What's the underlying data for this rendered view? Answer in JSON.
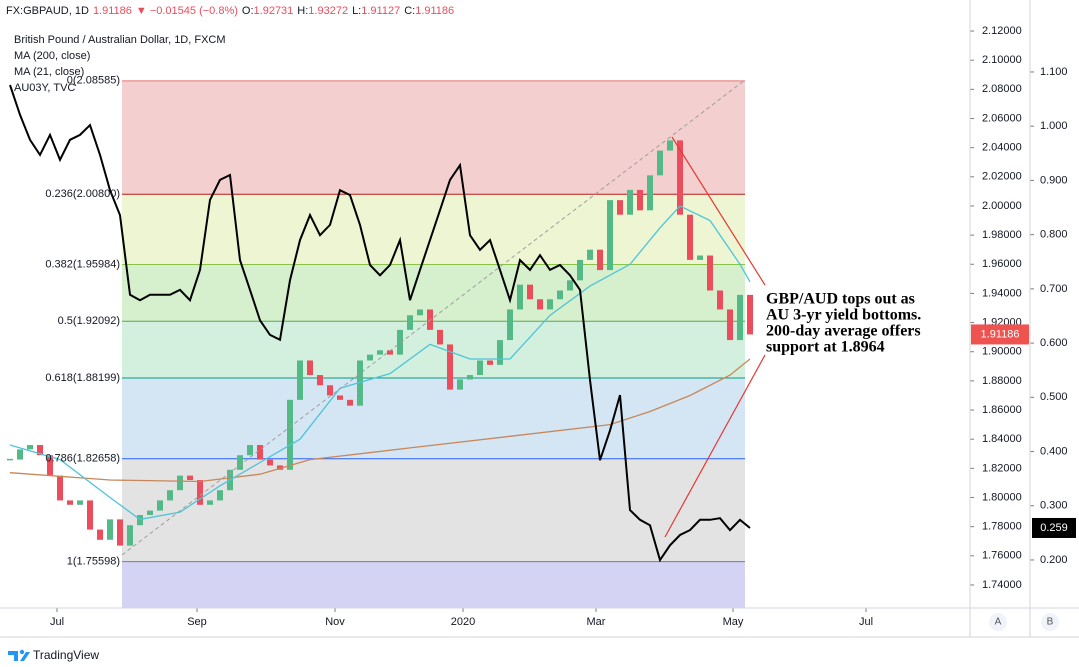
{
  "chart_data": {
    "type": "candlestick",
    "header": {
      "symbol": "FX:GBPAUD, 1D",
      "last": "1.91186",
      "change": "▼ −0.01545 (−0.8%)",
      "ohlc": [
        {
          "label": "O:",
          "value": "1.92731"
        },
        {
          "label": "H:",
          "value": "1.93272"
        },
        {
          "label": "L:",
          "value": "1.91127"
        },
        {
          "label": "C:",
          "value": "1.91186"
        }
      ]
    },
    "annotation": [
      "GBP/AUD tops out as",
      "AU 3-yr yield bottoms.",
      "200-day average offers",
      "support at 1.8964"
    ],
    "xlim": [
      -1,
      96
    ],
    "xticks": [
      {
        "value": 4.7,
        "label": "Jul"
      },
      {
        "value": 18.7,
        "label": "Sep"
      },
      {
        "value": 32.5,
        "label": "Nov"
      },
      {
        "value": 45.3,
        "label": "2020"
      },
      {
        "value": 58.6,
        "label": "Mar"
      },
      {
        "value": 72.3,
        "label": "May"
      },
      {
        "value": 85.6,
        "label": "Jul"
      }
    ],
    "ylim": [
      1.7242,
      2.1358
    ],
    "yticks": [
      {
        "value": 1.74,
        "label": "1.74000"
      },
      {
        "value": 1.76,
        "label": "1.76000"
      },
      {
        "value": 1.78,
        "label": "1.78000"
      },
      {
        "value": 1.8,
        "label": "1.80000"
      },
      {
        "value": 1.82,
        "label": "1.82000"
      },
      {
        "value": 1.84,
        "label": "1.84000"
      },
      {
        "value": 1.86,
        "label": "1.86000"
      },
      {
        "value": 1.88,
        "label": "1.88000"
      },
      {
        "value": 1.9,
        "label": "1.90000"
      },
      {
        "value": 1.92,
        "label": "1.92000"
      },
      {
        "value": 1.94,
        "label": "1.94000"
      },
      {
        "value": 1.96,
        "label": "1.96000"
      },
      {
        "value": 1.98,
        "label": "1.98000"
      },
      {
        "value": 2.0,
        "label": "2.00000"
      },
      {
        "value": 2.02,
        "label": "2.02000"
      },
      {
        "value": 2.04,
        "label": "2.04000"
      },
      {
        "value": 2.06,
        "label": "2.06000"
      },
      {
        "value": 2.08,
        "label": "2.08000"
      },
      {
        "value": 2.1,
        "label": "2.10000"
      },
      {
        "value": 2.12,
        "label": "2.12000"
      }
    ],
    "y2lim": [
      0.1114,
      1.218
    ],
    "y2ticks": [
      {
        "value": 0.2,
        "label": "0.200"
      },
      {
        "value": 0.3,
        "label": "0.300"
      },
      {
        "value": 0.4,
        "label": "0.400"
      },
      {
        "value": 0.5,
        "label": "0.500"
      },
      {
        "value": 0.6,
        "label": "0.600"
      },
      {
        "value": 0.7,
        "label": "0.700"
      },
      {
        "value": 0.8,
        "label": "0.800"
      },
      {
        "value": 0.9,
        "label": "0.900"
      },
      {
        "value": 1.0,
        "label": "1.000"
      },
      {
        "value": 1.1,
        "label": "1.100"
      }
    ],
    "fib_levels": [
      {
        "value": 2.08585,
        "label": "0(2.08585)",
        "color": "#e57373",
        "fill": "#f4cfcf"
      },
      {
        "value": 2.008,
        "label": "0.236(2.00800)",
        "color": "#b71c1c",
        "fill": "#eef5d3"
      },
      {
        "value": 1.95984,
        "label": "0.382(1.95984)",
        "color": "#8bc34a",
        "fill": "#d6efcc"
      },
      {
        "value": 1.92092,
        "label": "0.5(1.92092)",
        "color": "#4caf50",
        "fill": "#d3f0de"
      },
      {
        "value": 1.88199,
        "label": "0.618(1.88199)",
        "color": "#089981",
        "fill": "#d4e6f3"
      },
      {
        "value": 1.82658,
        "label": "0.786(1.82658)",
        "color": "#2962ff",
        "fill": "#e3e3e3"
      },
      {
        "value": 1.75598,
        "label": "1(1.75598)",
        "color": "#787b86",
        "fill": "#d5d3f3"
      }
    ],
    "series": [
      {
        "name": "British Pound / Australian Dollar, 1D, FXCM",
        "up_color": "#53b987",
        "down_color": "#eb4d5c",
        "values": [
          1.826,
          1.833,
          1.836,
          1.829,
          1.815,
          1.798,
          1.795,
          1.798,
          1.778,
          1.771,
          1.785,
          1.767,
          1.781,
          1.788,
          1.791,
          1.798,
          1.805,
          1.815,
          1.812,
          1.795,
          1.798,
          1.805,
          1.819,
          1.829,
          1.836,
          1.826,
          1.822,
          1.819,
          1.867,
          1.894,
          1.884,
          1.877,
          1.87,
          1.867,
          1.863,
          1.894,
          1.898,
          1.901,
          1.898,
          1.915,
          1.925,
          1.929,
          1.915,
          1.905,
          1.874,
          1.881,
          1.884,
          1.894,
          1.891,
          1.908,
          1.929,
          1.946,
          1.936,
          1.929,
          1.936,
          1.942,
          1.949,
          1.963,
          1.97,
          1.956,
          2.004,
          1.994,
          2.011,
          1.997,
          2.021,
          2.038,
          2.045,
          1.994,
          1.963,
          1.966,
          1.942,
          1.929,
          1.908,
          1.939,
          1.91186
        ]
      },
      {
        "name": "MA (200, close)",
        "color": "#c8875a",
        "x": [
          0,
          10,
          19,
          25,
          30,
          40,
          50,
          60,
          64,
          68,
          72,
          74
        ],
        "values": [
          1.817,
          1.812,
          1.811,
          1.816,
          1.826,
          1.834,
          1.842,
          1.85,
          1.859,
          1.87,
          1.884,
          1.895
        ]
      },
      {
        "name": "MA (21, close)",
        "color": "#4dc4d9",
        "x": [
          0,
          5,
          10,
          13,
          17,
          21,
          25,
          29,
          33,
          38,
          42,
          46,
          50,
          54,
          58,
          62,
          65,
          67,
          70,
          73,
          74
        ],
        "values": [
          1.836,
          1.826,
          1.8,
          1.785,
          1.79,
          1.808,
          1.824,
          1.84,
          1.875,
          1.885,
          1.905,
          1.895,
          1.895,
          1.925,
          1.945,
          1.96,
          1.985,
          2.0,
          1.99,
          1.96,
          1.948
        ]
      },
      {
        "name": "AU03Y, TVC",
        "color": "#000000",
        "axis": "y2",
        "values": [
          1.076,
          1.021,
          0.975,
          0.947,
          0.984,
          0.938,
          0.975,
          0.984,
          1.002,
          0.947,
          0.882,
          0.836,
          0.689,
          0.679,
          0.689,
          0.689,
          0.689,
          0.698,
          0.679,
          0.735,
          0.864,
          0.901,
          0.91,
          0.753,
          0.698,
          0.642,
          0.615,
          0.606,
          0.716,
          0.79,
          0.836,
          0.799,
          0.818,
          0.882,
          0.873,
          0.818,
          0.744,
          0.725,
          0.744,
          0.79,
          0.679,
          0.735,
          0.79,
          0.845,
          0.901,
          0.928,
          0.799,
          0.772,
          0.79,
          0.735,
          0.679,
          0.753,
          0.735,
          0.762,
          0.735,
          0.744,
          0.725,
          0.698,
          0.532,
          0.384,
          0.439,
          0.504,
          0.292,
          0.274,
          0.264,
          0.2,
          0.227,
          0.246,
          0.255,
          0.274,
          0.274,
          0.277,
          0.255,
          0.274,
          0.259
        ]
      }
    ],
    "footer": "TradingView",
    "scale_buttons": [
      "A",
      "B"
    ]
  }
}
